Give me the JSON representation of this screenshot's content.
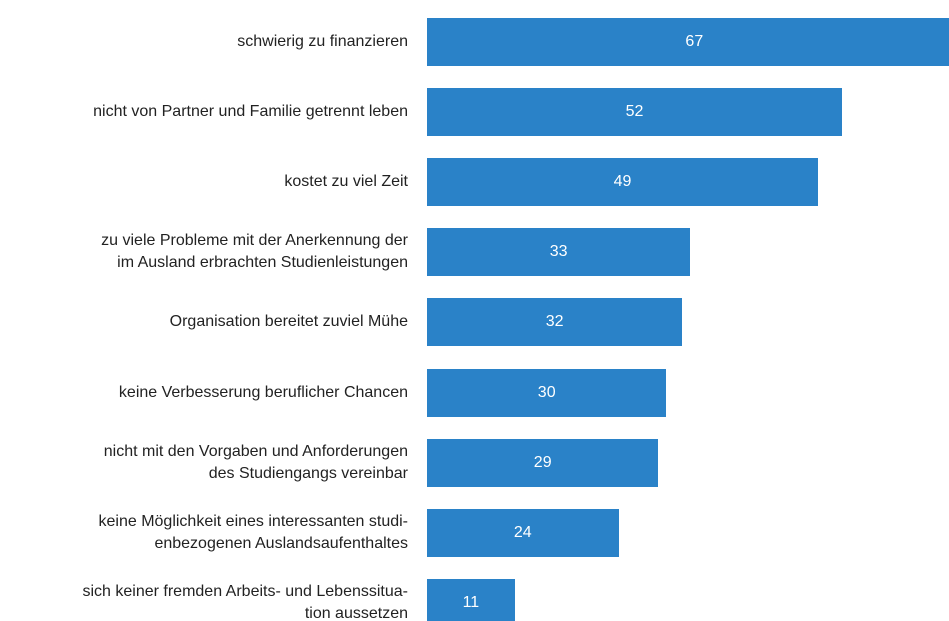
{
  "chart_data": {
    "type": "bar",
    "orientation": "horizontal",
    "color": "#2a82c8",
    "categories": [
      "schwierig zu finanzieren",
      "nicht von Partner und Familie getrennt leben",
      "kostet zu viel Zeit",
      "zu viele Probleme mit der Anerkennung der\nim Ausland erbrachten Studienleistungen",
      "Organisation bereitet zuviel Mühe",
      "keine Verbesserung beruflicher Chancen",
      "nicht mit den Vorgaben und Anforderungen\ndes Studiengangs vereinbar",
      "keine Möglichkeit eines interessanten studi-\nenbezogenen Auslandsaufenthaltes",
      "sich keiner fremden Arbeits- und Lebenssitua-\ntion aussetzen"
    ],
    "values": [
      67,
      52,
      49,
      33,
      32,
      30,
      29,
      24,
      11
    ]
  }
}
